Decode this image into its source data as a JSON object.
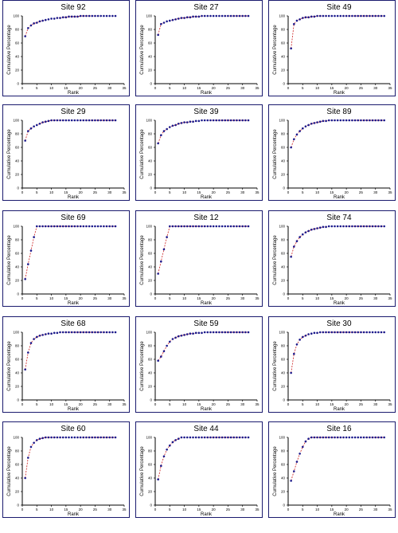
{
  "chart_data": [
    {
      "type": "line",
      "title": "Site 92",
      "xlabel": "Rank",
      "ylabel": "Cumulative Percentage",
      "xlim": [
        0,
        35
      ],
      "ylim": [
        0,
        100
      ],
      "xticks": [
        0,
        5,
        10,
        15,
        20,
        25,
        30,
        35
      ],
      "yticks": [
        0,
        20,
        40,
        60,
        80,
        100
      ],
      "x": [
        1,
        2,
        3,
        4,
        5,
        6,
        7,
        8,
        9,
        10,
        11,
        12,
        13,
        14,
        15,
        16,
        17,
        18,
        19,
        20,
        21,
        22,
        23,
        24,
        25,
        26,
        27,
        28,
        29,
        30,
        31,
        32
      ],
      "values": [
        70,
        82,
        86,
        89,
        90,
        92,
        93,
        94,
        95,
        96,
        96,
        97,
        97,
        98,
        98,
        99,
        99,
        99,
        99,
        100,
        100,
        100,
        100,
        100,
        100,
        100,
        100,
        100,
        100,
        100,
        100,
        100
      ]
    },
    {
      "type": "line",
      "title": "Site 27",
      "xlabel": "Rank",
      "ylabel": "Cumulative Percentage",
      "xlim": [
        0,
        35
      ],
      "ylim": [
        0,
        100
      ],
      "xticks": [
        0,
        5,
        10,
        15,
        20,
        25,
        30,
        35
      ],
      "yticks": [
        0,
        20,
        40,
        60,
        80,
        100
      ],
      "x": [
        1,
        2,
        3,
        4,
        5,
        6,
        7,
        8,
        9,
        10,
        11,
        12,
        13,
        14,
        15,
        16,
        17,
        18,
        19,
        20,
        21,
        22,
        23,
        24,
        25,
        26,
        27,
        28,
        29,
        30,
        31,
        32
      ],
      "values": [
        72,
        88,
        90,
        92,
        93,
        94,
        95,
        96,
        97,
        97,
        98,
        98,
        99,
        99,
        99,
        100,
        100,
        100,
        100,
        100,
        100,
        100,
        100,
        100,
        100,
        100,
        100,
        100,
        100,
        100,
        100,
        100
      ]
    },
    {
      "type": "line",
      "title": "Site 49",
      "xlabel": "Rank",
      "ylabel": "Cumulative Percentage",
      "xlim": [
        0,
        35
      ],
      "ylim": [
        0,
        100
      ],
      "xticks": [
        0,
        5,
        10,
        15,
        20,
        25,
        30,
        35
      ],
      "yticks": [
        0,
        20,
        40,
        60,
        80,
        100
      ],
      "x": [
        1,
        2,
        3,
        4,
        5,
        6,
        7,
        8,
        9,
        10,
        11,
        12,
        13,
        14,
        15,
        16,
        17,
        18,
        19,
        20,
        21,
        22,
        23,
        24,
        25,
        26,
        27,
        28,
        29,
        30,
        31,
        32,
        33
      ],
      "values": [
        52,
        88,
        93,
        95,
        97,
        98,
        98,
        99,
        99,
        100,
        100,
        100,
        100,
        100,
        100,
        100,
        100,
        100,
        100,
        100,
        100,
        100,
        100,
        100,
        100,
        100,
        100,
        100,
        100,
        100,
        100,
        100,
        100
      ]
    },
    {
      "type": "line",
      "title": "Site 29",
      "xlabel": "Rank",
      "ylabel": "Cumulative Percentage",
      "xlim": [
        0,
        35
      ],
      "ylim": [
        0,
        100
      ],
      "xticks": [
        0,
        5,
        10,
        15,
        20,
        25,
        30,
        35
      ],
      "yticks": [
        0,
        20,
        40,
        60,
        80,
        100
      ],
      "x": [
        1,
        2,
        3,
        4,
        5,
        6,
        7,
        8,
        9,
        10,
        11,
        12,
        13,
        14,
        15,
        16,
        17,
        18,
        19,
        20,
        21,
        22,
        23,
        24,
        25,
        26,
        27,
        28,
        29,
        30,
        31,
        32
      ],
      "values": [
        70,
        84,
        88,
        91,
        93,
        95,
        97,
        98,
        99,
        100,
        100,
        100,
        100,
        100,
        100,
        100,
        100,
        100,
        100,
        100,
        100,
        100,
        100,
        100,
        100,
        100,
        100,
        100,
        100,
        100,
        100,
        100
      ]
    },
    {
      "type": "line",
      "title": "Site 39",
      "xlabel": "Rank",
      "ylabel": "Cumulative Percentage",
      "xlim": [
        0,
        35
      ],
      "ylim": [
        0,
        100
      ],
      "xticks": [
        0,
        5,
        10,
        15,
        20,
        25,
        30,
        35
      ],
      "yticks": [
        0,
        20,
        40,
        60,
        80,
        100
      ],
      "x": [
        1,
        2,
        3,
        4,
        5,
        6,
        7,
        8,
        9,
        10,
        11,
        12,
        13,
        14,
        15,
        16,
        17,
        18,
        19,
        20,
        21,
        22,
        23,
        24,
        25,
        26,
        27,
        28,
        29,
        30,
        31,
        32
      ],
      "values": [
        66,
        78,
        84,
        87,
        90,
        92,
        93,
        95,
        96,
        97,
        97,
        98,
        98,
        99,
        99,
        100,
        100,
        100,
        100,
        100,
        100,
        100,
        100,
        100,
        100,
        100,
        100,
        100,
        100,
        100,
        100,
        100
      ]
    },
    {
      "type": "line",
      "title": "Site 89",
      "xlabel": "Rank",
      "ylabel": "Cumulative Percentage",
      "xlim": [
        0,
        35
      ],
      "ylim": [
        0,
        100
      ],
      "xticks": [
        0,
        5,
        10,
        15,
        20,
        25,
        30,
        35
      ],
      "yticks": [
        0,
        20,
        40,
        60,
        80,
        100
      ],
      "x": [
        1,
        2,
        3,
        4,
        5,
        6,
        7,
        8,
        9,
        10,
        11,
        12,
        13,
        14,
        15,
        16,
        17,
        18,
        19,
        20,
        21,
        22,
        23,
        24,
        25,
        26,
        27,
        28,
        29,
        30,
        31,
        32,
        33
      ],
      "values": [
        60,
        72,
        79,
        84,
        88,
        91,
        93,
        95,
        96,
        97,
        98,
        99,
        99,
        100,
        100,
        100,
        100,
        100,
        100,
        100,
        100,
        100,
        100,
        100,
        100,
        100,
        100,
        100,
        100,
        100,
        100,
        100,
        100
      ]
    },
    {
      "type": "line",
      "title": "Site 69",
      "xlabel": "Rank",
      "ylabel": "Cumulative Percentage",
      "xlim": [
        0,
        35
      ],
      "ylim": [
        0,
        100
      ],
      "xticks": [
        0,
        5,
        10,
        15,
        20,
        25,
        30,
        35
      ],
      "yticks": [
        0,
        20,
        40,
        60,
        80,
        100
      ],
      "x": [
        1,
        2,
        3,
        4,
        5,
        6,
        7,
        8,
        9,
        10,
        11,
        12,
        13,
        14,
        15,
        16,
        17,
        18,
        19,
        20,
        21,
        22,
        23,
        24,
        25,
        26,
        27,
        28,
        29,
        30,
        31,
        32
      ],
      "values": [
        22,
        44,
        64,
        84,
        100,
        100,
        100,
        100,
        100,
        100,
        100,
        100,
        100,
        100,
        100,
        100,
        100,
        100,
        100,
        100,
        100,
        100,
        100,
        100,
        100,
        100,
        100,
        100,
        100,
        100,
        100,
        100
      ]
    },
    {
      "type": "line",
      "title": "Site 12",
      "xlabel": "Rank",
      "ylabel": "Cumulative Percentage",
      "xlim": [
        0,
        35
      ],
      "ylim": [
        0,
        100
      ],
      "xticks": [
        0,
        5,
        10,
        15,
        20,
        25,
        30,
        35
      ],
      "yticks": [
        0,
        20,
        40,
        60,
        80,
        100
      ],
      "x": [
        1,
        2,
        3,
        4,
        5,
        6,
        7,
        8,
        9,
        10,
        11,
        12,
        13,
        14,
        15,
        16,
        17,
        18,
        19,
        20,
        21,
        22,
        23,
        24,
        25,
        26,
        27,
        28,
        29,
        30,
        31,
        32
      ],
      "values": [
        30,
        48,
        66,
        84,
        100,
        100,
        100,
        100,
        100,
        100,
        100,
        100,
        100,
        100,
        100,
        100,
        100,
        100,
        100,
        100,
        100,
        100,
        100,
        100,
        100,
        100,
        100,
        100,
        100,
        100,
        100,
        100
      ]
    },
    {
      "type": "line",
      "title": "Site 74",
      "xlabel": "Rank",
      "ylabel": "Cumulative Percentage",
      "xlim": [
        0,
        35
      ],
      "ylim": [
        0,
        100
      ],
      "xticks": [
        0,
        5,
        10,
        15,
        20,
        25,
        30,
        35
      ],
      "yticks": [
        0,
        20,
        40,
        60,
        80,
        100
      ],
      "x": [
        1,
        2,
        3,
        4,
        5,
        6,
        7,
        8,
        9,
        10,
        11,
        12,
        13,
        14,
        15,
        16,
        17,
        18,
        19,
        20,
        21,
        22,
        23,
        24,
        25,
        26,
        27,
        28,
        29,
        30,
        31,
        32,
        33
      ],
      "values": [
        55,
        70,
        78,
        84,
        88,
        91,
        93,
        95,
        96,
        97,
        98,
        99,
        99,
        100,
        100,
        100,
        100,
        100,
        100,
        100,
        100,
        100,
        100,
        100,
        100,
        100,
        100,
        100,
        100,
        100,
        100,
        100,
        100
      ]
    },
    {
      "type": "line",
      "title": "Site 68",
      "xlabel": "Rank",
      "ylabel": "Cumulative Percentage",
      "xlim": [
        0,
        35
      ],
      "ylim": [
        0,
        100
      ],
      "xticks": [
        0,
        5,
        10,
        15,
        20,
        25,
        30,
        35
      ],
      "yticks": [
        0,
        20,
        40,
        60,
        80,
        100
      ],
      "x": [
        1,
        2,
        3,
        4,
        5,
        6,
        7,
        8,
        9,
        10,
        11,
        12,
        13,
        14,
        15,
        16,
        17,
        18,
        19,
        20,
        21,
        22,
        23,
        24,
        25,
        26,
        27,
        28,
        29,
        30,
        31,
        32
      ],
      "values": [
        45,
        70,
        84,
        90,
        93,
        95,
        96,
        97,
        98,
        98,
        99,
        99,
        100,
        100,
        100,
        100,
        100,
        100,
        100,
        100,
        100,
        100,
        100,
        100,
        100,
        100,
        100,
        100,
        100,
        100,
        100,
        100
      ]
    },
    {
      "type": "line",
      "title": "Site 59",
      "xlabel": "Rank",
      "ylabel": "Cumulative Percentage",
      "xlim": [
        0,
        35
      ],
      "ylim": [
        0,
        100
      ],
      "xticks": [
        0,
        5,
        10,
        15,
        20,
        25,
        30,
        35
      ],
      "yticks": [
        0,
        20,
        40,
        60,
        80,
        100
      ],
      "x": [
        1,
        2,
        3,
        4,
        5,
        6,
        7,
        8,
        9,
        10,
        11,
        12,
        13,
        14,
        15,
        16,
        17,
        18,
        19,
        20,
        21,
        22,
        23,
        24,
        25,
        26,
        27,
        28,
        29,
        30,
        31,
        32
      ],
      "values": [
        58,
        64,
        72,
        80,
        86,
        90,
        92,
        94,
        95,
        96,
        97,
        98,
        98,
        99,
        99,
        99,
        100,
        100,
        100,
        100,
        100,
        100,
        100,
        100,
        100,
        100,
        100,
        100,
        100,
        100,
        100,
        100
      ]
    },
    {
      "type": "line",
      "title": "Site 30",
      "xlabel": "Rank",
      "ylabel": "Cumulative Percentage",
      "xlim": [
        0,
        35
      ],
      "ylim": [
        0,
        100
      ],
      "xticks": [
        0,
        5,
        10,
        15,
        20,
        25,
        30,
        35
      ],
      "yticks": [
        0,
        20,
        40,
        60,
        80,
        100
      ],
      "x": [
        1,
        2,
        3,
        4,
        5,
        6,
        7,
        8,
        9,
        10,
        11,
        12,
        13,
        14,
        15,
        16,
        17,
        18,
        19,
        20,
        21,
        22,
        23,
        24,
        25,
        26,
        27,
        28,
        29,
        30,
        31,
        32,
        33
      ],
      "values": [
        40,
        68,
        82,
        89,
        93,
        95,
        97,
        98,
        99,
        99,
        100,
        100,
        100,
        100,
        100,
        100,
        100,
        100,
        100,
        100,
        100,
        100,
        100,
        100,
        100,
        100,
        100,
        100,
        100,
        100,
        100,
        100,
        100
      ]
    },
    {
      "type": "line",
      "title": "Site 60",
      "xlabel": "Rank",
      "ylabel": "Cumulative Percentage",
      "xlim": [
        0,
        35
      ],
      "ylim": [
        0,
        100
      ],
      "xticks": [
        0,
        5,
        10,
        15,
        20,
        25,
        30,
        35
      ],
      "yticks": [
        0,
        20,
        40,
        60,
        80,
        100
      ],
      "x": [
        1,
        2,
        3,
        4,
        5,
        6,
        7,
        8,
        9,
        10,
        11,
        12,
        13,
        14,
        15,
        16,
        17,
        18,
        19,
        20,
        21,
        22,
        23,
        24,
        25,
        26,
        27,
        28,
        29,
        30,
        31,
        32
      ],
      "values": [
        40,
        70,
        86,
        92,
        96,
        98,
        99,
        100,
        100,
        100,
        100,
        100,
        100,
        100,
        100,
        100,
        100,
        100,
        100,
        100,
        100,
        100,
        100,
        100,
        100,
        100,
        100,
        100,
        100,
        100,
        100,
        100
      ]
    },
    {
      "type": "line",
      "title": "Site 44",
      "xlabel": "Rank",
      "ylabel": "Cumulative Percentage",
      "xlim": [
        0,
        35
      ],
      "ylim": [
        0,
        100
      ],
      "xticks": [
        0,
        5,
        10,
        15,
        20,
        25,
        30,
        35
      ],
      "yticks": [
        0,
        20,
        40,
        60,
        80,
        100
      ],
      "x": [
        1,
        2,
        3,
        4,
        5,
        6,
        7,
        8,
        9,
        10,
        11,
        12,
        13,
        14,
        15,
        16,
        17,
        18,
        19,
        20,
        21,
        22,
        23,
        24,
        25,
        26,
        27,
        28,
        29,
        30,
        31,
        32
      ],
      "values": [
        38,
        58,
        72,
        82,
        88,
        93,
        96,
        98,
        100,
        100,
        100,
        100,
        100,
        100,
        100,
        100,
        100,
        100,
        100,
        100,
        100,
        100,
        100,
        100,
        100,
        100,
        100,
        100,
        100,
        100,
        100,
        100
      ]
    },
    {
      "type": "line",
      "title": "Site 16",
      "xlabel": "Rank",
      "ylabel": "Cumulative Percentage",
      "xlim": [
        0,
        35
      ],
      "ylim": [
        0,
        100
      ],
      "xticks": [
        0,
        5,
        10,
        15,
        20,
        25,
        30,
        35
      ],
      "yticks": [
        0,
        20,
        40,
        60,
        80,
        100
      ],
      "x": [
        1,
        2,
        3,
        4,
        5,
        6,
        7,
        8,
        9,
        10,
        11,
        12,
        13,
        14,
        15,
        16,
        17,
        18,
        19,
        20,
        21,
        22,
        23,
        24,
        25,
        26,
        27,
        28,
        29,
        30,
        31,
        32,
        33
      ],
      "values": [
        36,
        50,
        64,
        76,
        86,
        94,
        98,
        100,
        100,
        100,
        100,
        100,
        100,
        100,
        100,
        100,
        100,
        100,
        100,
        100,
        100,
        100,
        100,
        100,
        100,
        100,
        100,
        100,
        100,
        100,
        100,
        100,
        100
      ]
    }
  ],
  "colors": {
    "marker": "#1a1a8c",
    "line": "#cc1f1f",
    "frame": "#1a1a6e",
    "axis": "#000000"
  }
}
